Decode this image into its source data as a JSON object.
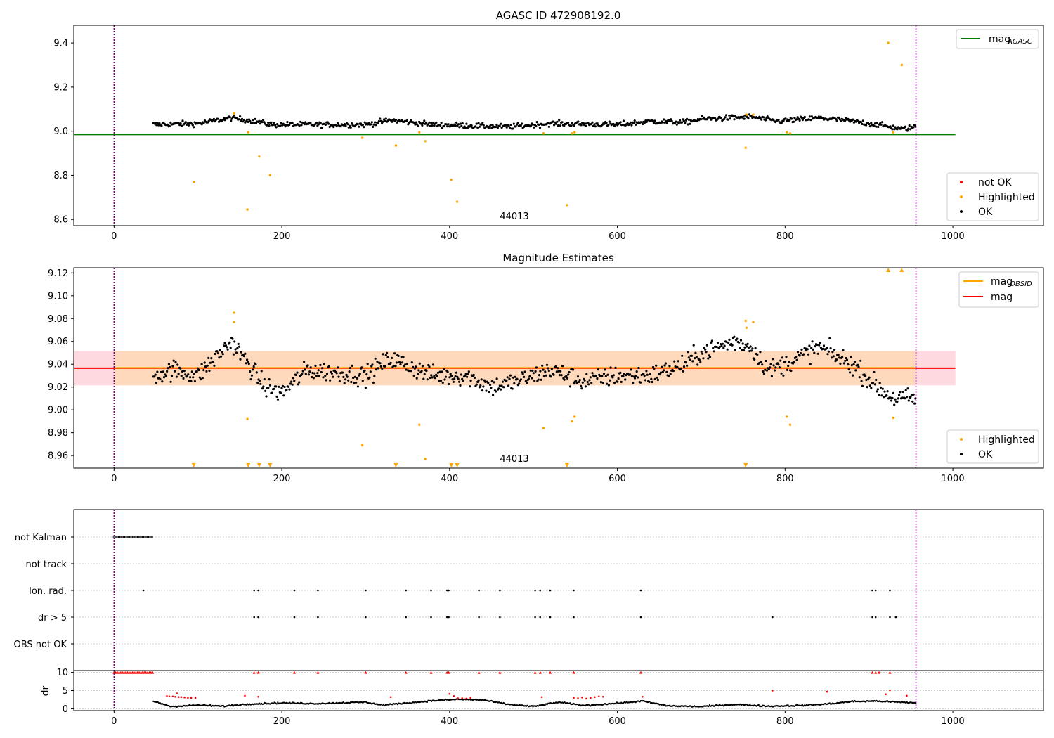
{
  "colors": {
    "ok": "#000000",
    "highlighted": "#ffa500",
    "not_ok": "#ff0000",
    "agasc_line": "#008000",
    "mag_line": "#ff0000",
    "mag_obsid_line": "#ffa500",
    "obsid_boundary": "#800080",
    "band_mag": "#ffc0cb",
    "band_obsid": "#ffd8b0"
  },
  "chart_data": [
    {
      "type": "scatter",
      "title": "AGASC ID 472908192.0",
      "xlim": [
        -48,
        1108
      ],
      "ylim": [
        8.572,
        9.48
      ],
      "xticks": [
        "0",
        "200",
        "400",
        "600",
        "800",
        "1000"
      ],
      "yticks": [
        "8.6",
        "8.8",
        "9.0",
        "9.2",
        "9.4"
      ],
      "ytick_values": [
        8.6,
        8.8,
        9.0,
        9.2,
        9.4
      ],
      "legend_upper": [
        {
          "label": "mag",
          "subscript": "AGASC",
          "color": "#008000"
        }
      ],
      "legend_lower": [
        {
          "label": "not OK",
          "color": "#ff0000"
        },
        {
          "label": "Highlighted",
          "color": "#ffa500"
        },
        {
          "label": "OK",
          "color": "#000000"
        }
      ],
      "obsid_label": "44013",
      "obsid_boundaries": [
        0,
        956
      ],
      "agasc_mag": 8.985,
      "agasc_line_x": [
        -48,
        1003
      ],
      "ok_trend": [
        [
          47,
          9.03
        ],
        [
          100,
          9.035
        ],
        [
          140,
          9.06
        ],
        [
          160,
          9.05
        ],
        [
          190,
          9.03
        ],
        [
          220,
          9.03
        ],
        [
          300,
          9.03
        ],
        [
          330,
          9.05
        ],
        [
          380,
          9.03
        ],
        [
          430,
          9.025
        ],
        [
          470,
          9.02
        ],
        [
          520,
          9.035
        ],
        [
          600,
          9.03
        ],
        [
          640,
          9.045
        ],
        [
          680,
          9.04
        ],
        [
          700,
          9.055
        ],
        [
          760,
          9.065
        ],
        [
          790,
          9.045
        ],
        [
          840,
          9.06
        ],
        [
          870,
          9.05
        ],
        [
          910,
          9.03
        ],
        [
          940,
          9.01
        ],
        [
          956,
          9.02
        ]
      ],
      "highlighted": [
        [
          95,
          8.77
        ],
        [
          143,
          9.08
        ],
        [
          159,
          8.645
        ],
        [
          160,
          8.995
        ],
        [
          173,
          8.885
        ],
        [
          186,
          8.8
        ],
        [
          296,
          8.97
        ],
        [
          336,
          8.935
        ],
        [
          364,
          8.995
        ],
        [
          371,
          8.955
        ],
        [
          402,
          8.78
        ],
        [
          409,
          8.68
        ],
        [
          512,
          8.99
        ],
        [
          540,
          8.665
        ],
        [
          546,
          8.99
        ],
        [
          549,
          8.995
        ],
        [
          753,
          8.925
        ],
        [
          754,
          9.075
        ],
        [
          762,
          9.075
        ],
        [
          802,
          8.995
        ],
        [
          806,
          8.99
        ],
        [
          923,
          9.4
        ],
        [
          929,
          8.995
        ],
        [
          939,
          9.3
        ]
      ]
    },
    {
      "type": "scatter",
      "title": "Magnitude Estimates",
      "xlim": [
        -48,
        1108
      ],
      "ylim": [
        8.949,
        9.1245
      ],
      "xticks": [
        "0",
        "200",
        "400",
        "600",
        "800",
        "1000"
      ],
      "yticks": [
        "8.96",
        "8.98",
        "9.00",
        "9.02",
        "9.04",
        "9.06",
        "9.08",
        "9.10",
        "9.12"
      ],
      "ytick_values": [
        8.96,
        8.98,
        9.0,
        9.02,
        9.04,
        9.06,
        9.08,
        9.1,
        9.12
      ],
      "legend_upper": [
        {
          "label": "mag",
          "subscript": "OBSID",
          "color": "#ffa500"
        },
        {
          "label": "mag",
          "subscript": "",
          "color": "#ff0000"
        }
      ],
      "legend_lower": [
        {
          "label": "Highlighted",
          "color": "#ffa500"
        },
        {
          "label": "OK",
          "color": "#000000"
        }
      ],
      "obsid_label": "44013",
      "obsid_boundaries": [
        0,
        956
      ],
      "mag": 9.0365,
      "mag_band": [
        9.0215,
        9.0515
      ],
      "mag_band_x": [
        -48,
        1003
      ],
      "mag_obsid": 9.0368,
      "mag_obsid_band": [
        9.0215,
        9.0515
      ],
      "mag_obsid_x": [
        0,
        956
      ],
      "ok_trend": [
        [
          47,
          9.03
        ],
        [
          70,
          9.035
        ],
        [
          100,
          9.03
        ],
        [
          120,
          9.045
        ],
        [
          140,
          9.06
        ],
        [
          160,
          9.04
        ],
        [
          180,
          9.02
        ],
        [
          200,
          9.015
        ],
        [
          230,
          9.035
        ],
        [
          300,
          9.03
        ],
        [
          330,
          9.045
        ],
        [
          380,
          9.03
        ],
        [
          420,
          9.03
        ],
        [
          450,
          9.02
        ],
        [
          480,
          9.025
        ],
        [
          520,
          9.035
        ],
        [
          560,
          9.025
        ],
        [
          600,
          9.03
        ],
        [
          640,
          9.03
        ],
        [
          680,
          9.04
        ],
        [
          700,
          9.05
        ],
        [
          740,
          9.06
        ],
        [
          760,
          9.055
        ],
        [
          780,
          9.035
        ],
        [
          800,
          9.04
        ],
        [
          840,
          9.055
        ],
        [
          880,
          9.04
        ],
        [
          910,
          9.02
        ],
        [
          930,
          9.01
        ],
        [
          956,
          9.01
        ]
      ],
      "highlighted": [
        [
          143,
          9.085
        ],
        [
          143,
          9.077
        ],
        [
          159,
          8.992
        ],
        [
          364,
          8.987
        ],
        [
          371,
          8.957
        ],
        [
          296,
          8.969
        ],
        [
          512,
          8.984
        ],
        [
          546,
          8.99
        ],
        [
          549,
          8.994
        ],
        [
          753,
          9.078
        ],
        [
          754,
          9.072
        ],
        [
          762,
          9.077
        ],
        [
          802,
          8.994
        ],
        [
          806,
          8.987
        ],
        [
          929,
          8.993
        ]
      ],
      "highlighted_below": [
        95,
        160,
        173,
        186,
        336,
        402,
        409,
        540,
        753
      ],
      "highlighted_above": [
        923,
        939
      ]
    },
    {
      "type": "scatter",
      "title": "",
      "xlim": [
        -48,
        1108
      ],
      "categories": [
        "not Kalman",
        "not track",
        "Ion. rad.",
        "dr > 5",
        "OBS not OK"
      ],
      "not_kalman_range": [
        0,
        46
      ],
      "ion_rad_x": [
        35,
        167,
        172,
        215,
        243,
        300,
        348,
        378,
        397,
        399,
        435,
        460,
        502,
        508,
        520,
        548,
        628,
        904,
        908,
        925
      ],
      "dr5_x": [
        167,
        172,
        215,
        243,
        300,
        348,
        378,
        397,
        399,
        435,
        460,
        502,
        508,
        520,
        548,
        628,
        785,
        904,
        908,
        925,
        932
      ],
      "obsid_boundaries": [
        0,
        956
      ]
    },
    {
      "type": "scatter",
      "title": "",
      "ylabel": "dr",
      "xlim": [
        -48,
        1108
      ],
      "ylim": [
        -0.5,
        10.5
      ],
      "xticks": [
        "0",
        "200",
        "400",
        "600",
        "800",
        "1000"
      ],
      "yticks": [
        "0",
        "5",
        "10"
      ],
      "ytick_values": [
        0,
        5,
        10
      ],
      "obsid_boundaries": [
        0,
        956
      ],
      "red_top_x": [
        0,
        2,
        4,
        6,
        8,
        10,
        12,
        14,
        16,
        18,
        20,
        22,
        24,
        26,
        28,
        30,
        32,
        34,
        36,
        38,
        40,
        42,
        44,
        46,
        167,
        172,
        215,
        243,
        300,
        348,
        378,
        397,
        399,
        435,
        460,
        502,
        508,
        520,
        548,
        628,
        904,
        908,
        912,
        925
      ],
      "red_dr": [
        [
          63,
          3.5
        ],
        [
          66,
          3.4
        ],
        [
          70,
          3.4
        ],
        [
          73,
          3.3
        ],
        [
          77,
          3.2
        ],
        [
          80,
          3.2
        ],
        [
          84,
          3.1
        ],
        [
          88,
          3.0
        ],
        [
          92,
          3.0
        ],
        [
          97,
          3.0
        ],
        [
          75,
          4.2
        ],
        [
          156,
          3.6
        ],
        [
          172,
          3.3
        ],
        [
          330,
          3.2
        ],
        [
          400,
          4.1
        ],
        [
          405,
          3.5
        ],
        [
          410,
          2.9
        ],
        [
          415,
          2.9
        ],
        [
          420,
          2.8
        ],
        [
          425,
          3.0
        ],
        [
          510,
          3.2
        ],
        [
          548,
          3.0
        ],
        [
          553,
          2.9
        ],
        [
          558,
          3.1
        ],
        [
          563,
          2.8
        ],
        [
          568,
          3.0
        ],
        [
          573,
          3.2
        ],
        [
          578,
          3.4
        ],
        [
          583,
          3.3
        ],
        [
          630,
          3.3
        ],
        [
          785,
          5.0
        ],
        [
          850,
          4.7
        ],
        [
          920,
          4.0
        ],
        [
          925,
          5.1
        ],
        [
          945,
          3.6
        ]
      ],
      "black_dr_trend": [
        [
          47,
          2.0
        ],
        [
          60,
          1.2
        ],
        [
          68,
          0.6
        ],
        [
          100,
          1.0
        ],
        [
          130,
          0.7
        ],
        [
          160,
          1.3
        ],
        [
          200,
          1.6
        ],
        [
          240,
          1.4
        ],
        [
          280,
          1.7
        ],
        [
          300,
          1.8
        ],
        [
          320,
          1.0
        ],
        [
          350,
          1.6
        ],
        [
          380,
          2.2
        ],
        [
          410,
          2.6
        ],
        [
          440,
          2.4
        ],
        [
          470,
          1.2
        ],
        [
          500,
          0.6
        ],
        [
          530,
          1.8
        ],
        [
          560,
          0.9
        ],
        [
          600,
          1.5
        ],
        [
          630,
          2.1
        ],
        [
          660,
          0.8
        ],
        [
          700,
          0.6
        ],
        [
          740,
          1.2
        ],
        [
          780,
          0.7
        ],
        [
          820,
          0.9
        ],
        [
          850,
          1.3
        ],
        [
          880,
          2.0
        ],
        [
          910,
          2.1
        ],
        [
          956,
          1.6
        ]
      ]
    }
  ]
}
